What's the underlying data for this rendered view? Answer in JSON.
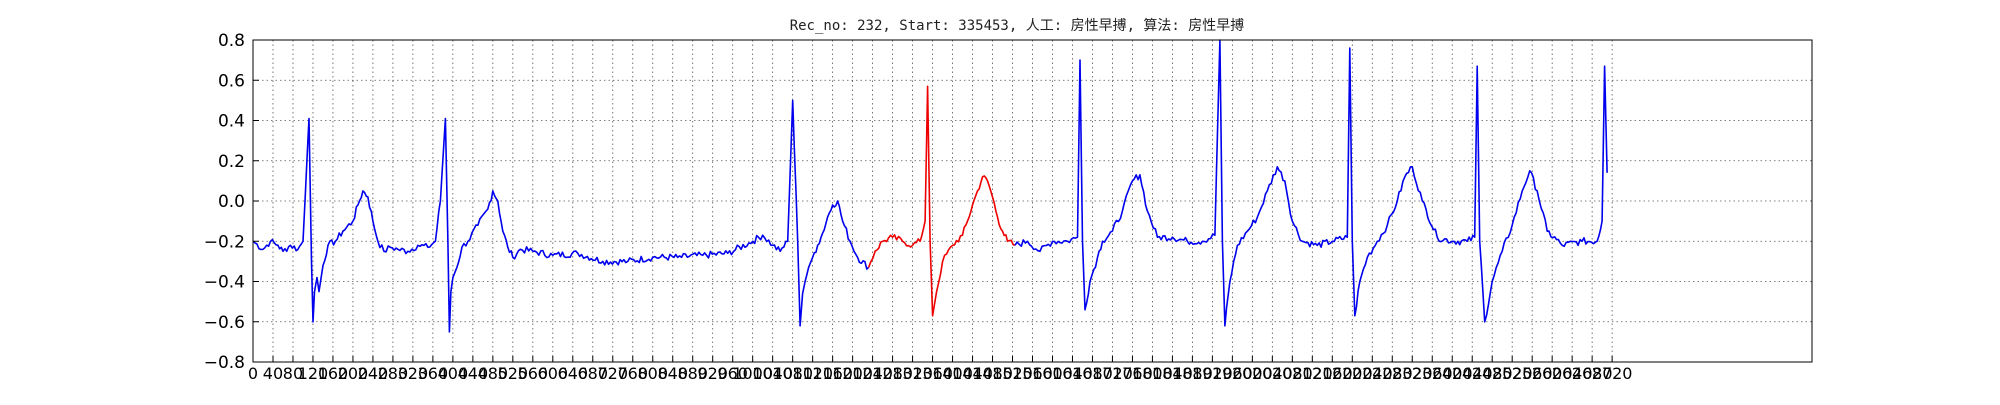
{
  "chart_data": {
    "type": "line",
    "title": "Rec_no: 232, Start: 335453, 人工: 房性早搏, 算法: 房性早搏",
    "xlabel": "",
    "ylabel": "",
    "xlim": [
      0,
      3120
    ],
    "ylim": [
      -0.8,
      0.8
    ],
    "grid": true,
    "grid_style": "dotted",
    "yticks": [
      "−0.8",
      "−0.6",
      "−0.4",
      "−0.2",
      "0.0",
      "0.2",
      "0.4",
      "0.6",
      "0.8"
    ],
    "xticks": [
      "0",
      "40",
      "80",
      "120",
      "160",
      "200",
      "240",
      "280",
      "320",
      "360",
      "400",
      "440",
      "480",
      "520",
      "560",
      "600",
      "640",
      "680",
      "720",
      "760",
      "800",
      "840",
      "880",
      "920",
      "960",
      "1000",
      "1040",
      "1080",
      "1120",
      "1160",
      "1200",
      "1240",
      "1280",
      "1320",
      "1360",
      "1400",
      "1440",
      "1480",
      "1520",
      "1560",
      "1600",
      "1640",
      "1680",
      "1720",
      "1760",
      "1800",
      "1840",
      "1880",
      "1920",
      "1960",
      "2000",
      "2040",
      "2080",
      "2120",
      "2160",
      "2200",
      "2240",
      "2280",
      "2320",
      "2360",
      "2400",
      "2440",
      "2480",
      "2520",
      "2560",
      "2600",
      "2640",
      "2680",
      "2720"
    ],
    "series": [
      {
        "color": "#0000ee",
        "x": [
          0,
          20,
          35,
          50,
          60,
          75,
          90,
          100,
          105,
          112,
          117,
          120,
          123,
          128,
          132,
          140,
          150,
          165,
          180,
          200,
          210,
          220,
          230,
          240,
          250,
          262,
          275,
          290,
          310,
          330,
          350,
          365,
          375,
          385,
          390,
          393,
          396,
          400,
          408,
          418,
          430,
          450,
          470,
          480,
          490,
          500,
          510,
          520,
          535,
          560,
          600,
          650,
          700,
          750,
          800,
          850,
          900,
          950,
          1000,
          1020,
          1040,
          1055,
          1070,
          1080,
          1090,
          1095,
          1100,
          1105,
          1112,
          1120,
          1130,
          1140,
          1150,
          1160,
          1170,
          1180,
          1195,
          1210,
          1232
        ],
        "y": [
          -0.2,
          -0.24,
          -0.2,
          -0.22,
          -0.25,
          -0.22,
          -0.24,
          -0.2,
          0.05,
          0.41,
          -0.3,
          -0.6,
          -0.45,
          -0.38,
          -0.45,
          -0.32,
          -0.22,
          -0.2,
          -0.15,
          -0.1,
          -0.02,
          0.05,
          0.02,
          -0.1,
          -0.2,
          -0.25,
          -0.23,
          -0.24,
          -0.25,
          -0.22,
          -0.23,
          -0.2,
          0.0,
          0.41,
          -0.2,
          -0.65,
          -0.45,
          -0.38,
          -0.33,
          -0.23,
          -0.2,
          -0.12,
          -0.04,
          0.05,
          0.0,
          -0.15,
          -0.23,
          -0.28,
          -0.24,
          -0.25,
          -0.27,
          -0.26,
          -0.3,
          -0.3,
          -0.28,
          -0.28,
          -0.27,
          -0.26,
          -0.2,
          -0.17,
          -0.22,
          -0.25,
          -0.2,
          0.5,
          -0.2,
          -0.62,
          -0.46,
          -0.4,
          -0.33,
          -0.28,
          -0.22,
          -0.16,
          -0.08,
          -0.02,
          0.0,
          -0.1,
          -0.2,
          -0.28,
          -0.33
        ]
      },
      {
        "color": "#ee0000",
        "x": [
          1232,
          1245,
          1260,
          1280,
          1300,
          1320,
          1335,
          1345,
          1350,
          1355,
          1360,
          1368,
          1380,
          1400,
          1420,
          1430,
          1440,
          1450,
          1460,
          1470,
          1480,
          1490,
          1500,
          1510,
          1525
        ],
        "y": [
          -0.33,
          -0.25,
          -0.2,
          -0.18,
          -0.2,
          -0.22,
          -0.2,
          -0.1,
          0.57,
          -0.2,
          -0.57,
          -0.45,
          -0.3,
          -0.22,
          -0.17,
          -0.1,
          -0.02,
          0.05,
          0.12,
          0.1,
          0.02,
          -0.08,
          -0.15,
          -0.2,
          -0.22
        ]
      },
      {
        "color": "#0000ee",
        "x": [
          1525,
          1550,
          1575,
          1600,
          1630,
          1650,
          1655,
          1660,
          1665,
          1675,
          1690,
          1700,
          1720,
          1740,
          1760,
          1775,
          1790,
          1810,
          1840,
          1870,
          1900,
          1925,
          1935,
          1940,
          1945,
          1955,
          1970,
          1990,
          2010,
          2030,
          2050,
          2065,
          2080,
          2100,
          2130,
          2160,
          2190,
          2195,
          2200,
          2205,
          2215,
          2230,
          2250,
          2270,
          2290,
          2305,
          2320,
          2340,
          2370,
          2400,
          2430,
          2445,
          2450,
          2455,
          2465,
          2480,
          2500,
          2520,
          2540,
          2555,
          2570,
          2590,
          2620,
          2660,
          2690,
          2700,
          2705,
          2710
        ],
        "y": [
          -0.22,
          -0.2,
          -0.25,
          -0.2,
          -0.2,
          -0.18,
          0.7,
          -0.2,
          -0.54,
          -0.4,
          -0.28,
          -0.2,
          -0.15,
          -0.05,
          0.1,
          0.13,
          -0.05,
          -0.18,
          -0.18,
          -0.2,
          -0.2,
          -0.17,
          0.8,
          -0.2,
          -0.62,
          -0.4,
          -0.22,
          -0.15,
          -0.08,
          0.05,
          0.17,
          0.1,
          -0.1,
          -0.2,
          -0.22,
          -0.2,
          -0.18,
          0.76,
          -0.2,
          -0.57,
          -0.4,
          -0.28,
          -0.2,
          -0.12,
          0.0,
          0.12,
          0.17,
          0.0,
          -0.18,
          -0.2,
          -0.2,
          -0.18,
          0.67,
          -0.2,
          -0.6,
          -0.4,
          -0.25,
          -0.12,
          0.05,
          0.15,
          0.05,
          -0.15,
          -0.22,
          -0.2,
          -0.2,
          -0.1,
          0.67,
          0.14
        ]
      }
    ]
  }
}
